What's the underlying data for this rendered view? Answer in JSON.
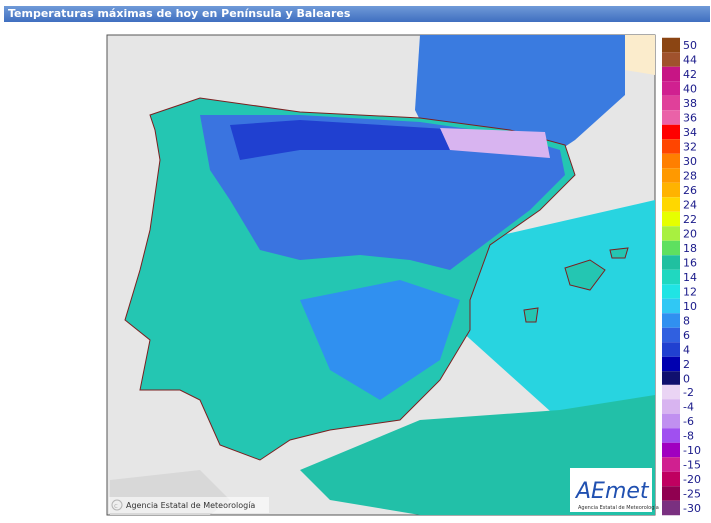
{
  "header": {
    "title": "Temperaturas máximas de hoy en Península y Baleares"
  },
  "legend": {
    "upper": [
      {
        "label": 50,
        "color": "#8b4513"
      },
      {
        "label": 44,
        "color": "#a0522d"
      },
      {
        "label": 42,
        "color": "#c71585"
      },
      {
        "label": 40,
        "color": "#d02090"
      },
      {
        "label": 38,
        "color": "#e0409a"
      },
      {
        "label": 36,
        "color": "#ea62a8"
      },
      {
        "label": 34,
        "color": "#ff0000"
      },
      {
        "label": 32,
        "color": "#ff4500"
      },
      {
        "label": 30,
        "color": "#ff7f00"
      },
      {
        "label": 28,
        "color": "#ff9900"
      },
      {
        "label": 26,
        "color": "#ffb300"
      },
      {
        "label": 24,
        "color": "#ffd700"
      },
      {
        "label": 22,
        "color": "#e6ff00"
      },
      {
        "label": 20,
        "color": "#a8f040"
      },
      {
        "label": 18,
        "color": "#5ee060"
      },
      {
        "label": 16,
        "color": "#20c0a0"
      },
      {
        "label": 14,
        "color": "#20d8c0"
      },
      {
        "label": 12,
        "color": "#20e4e4"
      },
      {
        "label": 10,
        "color": "#30c8f4"
      },
      {
        "label": 8,
        "color": "#3090f0"
      },
      {
        "label": 6,
        "color": "#3060e0"
      },
      {
        "label": 4,
        "color": "#2040d0"
      },
      {
        "label": 2,
        "color": "#0000b0"
      },
      {
        "label": 0,
        "color": "#10106e"
      }
    ],
    "lower": [
      {
        "label": -2,
        "color": "#ead4f4"
      },
      {
        "label": -4,
        "color": "#d8b4f0"
      },
      {
        "label": -6,
        "color": "#c090f0"
      },
      {
        "label": -8,
        "color": "#a050f0"
      },
      {
        "label": -10,
        "color": "#a000c0"
      },
      {
        "label": -15,
        "color": "#d02090"
      },
      {
        "label": -20,
        "color": "#c00060"
      },
      {
        "label": -25,
        "color": "#900050"
      },
      {
        "label": -30,
        "color": "#7a3080"
      }
    ]
  },
  "footer": {
    "copyright": "Agencia Estatal de Meteorología",
    "logo": "AEmet",
    "logo_caption": "Agencia Estatal de Meteorología"
  }
}
